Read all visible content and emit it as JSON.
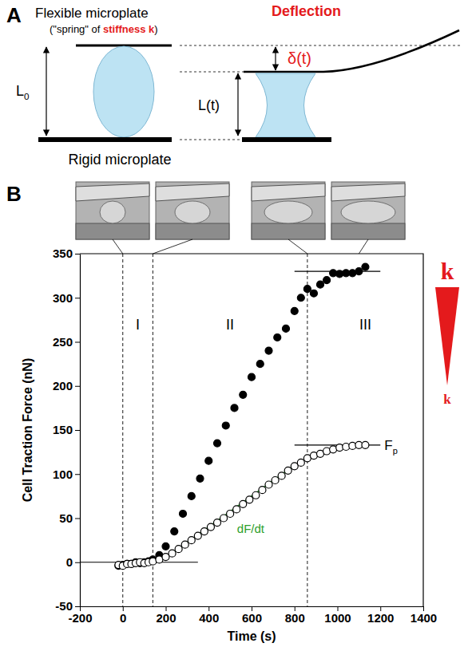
{
  "panel_a": {
    "letter": "A",
    "flexible_plate": "Flexible microplate",
    "spring_note": {
      "before": "(\"spring\" of ",
      "highlight": "stiffness k",
      "after": ")"
    },
    "initial_length": {
      "text": "L",
      "subscript": "0"
    },
    "deflection_title": "Deflection",
    "deflection": "δ(t)",
    "length": "L(t)",
    "rigid_plate": "Rigid microplate",
    "highlight_color": "#e41a1c"
  },
  "panel_b": {
    "letter": "B",
    "image_times": [
      0,
      140,
      860,
      1100
    ]
  },
  "chart_data": {
    "type": "scatter",
    "x_label": "Time (s)",
    "y_label": "Cell Traction Force (nN)",
    "xlim": [
      -200,
      1400
    ],
    "xticks": [
      -200,
      0,
      200,
      400,
      600,
      800,
      1000,
      1200,
      1400
    ],
    "ylim": [
      -50,
      350
    ],
    "yticks": [
      -50,
      0,
      50,
      100,
      150,
      200,
      250,
      300,
      350
    ],
    "series": [
      {
        "color": "#000000",
        "marker": "filled-circle",
        "x": [
          -20,
          0,
          20,
          40,
          60,
          80,
          100,
          120,
          140,
          170,
          200,
          240,
          280,
          320,
          360,
          400,
          440,
          480,
          520,
          560,
          600,
          640,
          680,
          720,
          760,
          800,
          830,
          860,
          890,
          920,
          950,
          980,
          1010,
          1040,
          1070,
          1100,
          1130
        ],
        "values": [
          -4,
          -3,
          -2,
          -2,
          0,
          -1,
          0,
          1,
          3,
          8,
          18,
          35,
          55,
          75,
          95,
          115,
          135,
          155,
          175,
          190,
          210,
          225,
          240,
          255,
          265,
          285,
          300,
          310,
          305,
          315,
          320,
          328,
          327,
          328,
          328,
          330,
          335
        ]
      },
      {
        "color": "#000000",
        "marker": "open-circle",
        "x": [
          -20,
          0,
          20,
          40,
          60,
          80,
          100,
          120,
          140,
          170,
          200,
          230,
          260,
          290,
          320,
          350,
          380,
          410,
          440,
          470,
          500,
          530,
          560,
          590,
          620,
          650,
          680,
          710,
          740,
          770,
          800,
          830,
          860,
          890,
          920,
          950,
          980,
          1010,
          1040,
          1070,
          1100,
          1130
        ],
        "values": [
          -3,
          -4,
          -2,
          -2,
          -1,
          0,
          -1,
          0,
          1,
          3,
          6,
          10,
          15,
          20,
          25,
          30,
          35,
          40,
          45,
          50,
          55,
          60,
          66,
          71,
          76,
          82,
          88,
          93,
          98,
          104,
          109,
          113,
          118,
          121,
          123,
          126,
          128,
          130,
          131,
          132,
          133,
          133
        ]
      }
    ],
    "phases": {
      "labels": [
        "I",
        "II",
        "III"
      ],
      "boundaries": [
        0,
        140,
        860
      ]
    },
    "reference_lines": [
      {
        "y": 0,
        "x": [
          -200,
          350
        ]
      },
      {
        "y": 330,
        "x": [
          800,
          1200
        ]
      },
      {
        "y": 133,
        "x": [
          800,
          1200
        ],
        "label": {
          "text": "F",
          "subscript": "p"
        }
      }
    ],
    "fit_line": {
      "x": [
        230,
        790
      ],
      "y": [
        10,
        108
      ],
      "color": "#2ca02c",
      "label": "dF/dt",
      "line_style": "solid"
    },
    "stiffness_scale": {
      "high": "k",
      "low": "k",
      "color": "#e41a1c"
    }
  }
}
